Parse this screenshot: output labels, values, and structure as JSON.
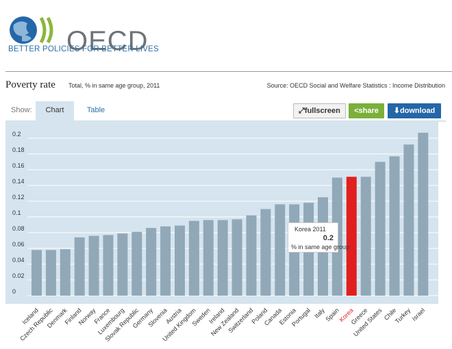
{
  "header": {
    "logo_word": "OECD",
    "tagline": "BETTER POLICIES FOR BETTER LIVES",
    "title": "Poverty rate",
    "subtitle": "Total, % in same age group, 2011",
    "source": "Source: OECD Social and Welfare Statistics : Income Distribution"
  },
  "toolbar": {
    "show_label": "Show:",
    "tab_chart": "Chart",
    "tab_table": "Table",
    "fullscreen_label": "fullscreen",
    "share_label": "share",
    "download_label": "download"
  },
  "tooltip": {
    "name": "Korea 2011",
    "value": "0.2",
    "unit": "% in same age group"
  },
  "colors": {
    "bar": "#91a8b8",
    "highlight": "#e0201f",
    "plot_bg": "#d5e4ee",
    "grid": "#ffffff"
  },
  "chart_data": {
    "type": "bar",
    "title": "Poverty rate",
    "subtitle": "Total, % in same age group, 2011",
    "categories": [
      "Iceland",
      "Czech Republic",
      "Denmark",
      "Finland",
      "Norway",
      "France",
      "Luxembourg",
      "Slovak Republic",
      "Germany",
      "Slovenia",
      "Austria",
      "United Kingdom",
      "Sweden",
      "Ireland",
      "New Zealand",
      "Switzerland",
      "Poland",
      "Canada",
      "Estonia",
      "Portugal",
      "Italy",
      "Spain",
      "Korea",
      "Greece",
      "United States",
      "Chile",
      "Turkey",
      "Israel"
    ],
    "values": [
      0.058,
      0.058,
      0.059,
      0.074,
      0.076,
      0.077,
      0.079,
      0.081,
      0.086,
      0.088,
      0.089,
      0.095,
      0.096,
      0.096,
      0.097,
      0.102,
      0.11,
      0.116,
      0.116,
      0.118,
      0.125,
      0.15,
      0.151,
      0.151,
      0.17,
      0.177,
      0.192,
      0.207
    ],
    "highlight_index": 22,
    "yticks": [
      0,
      0.02,
      0.04,
      0.06,
      0.08,
      0.1,
      0.12,
      0.14,
      0.16,
      0.18,
      0.2
    ],
    "ylim": [
      0,
      0.22
    ],
    "grid": true,
    "xlabel": "",
    "ylabel": ""
  }
}
